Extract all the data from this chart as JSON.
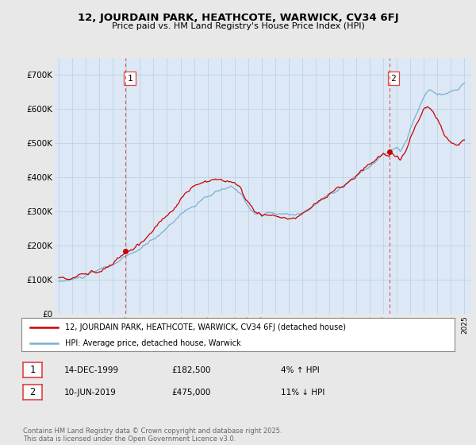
{
  "title": "12, JOURDAIN PARK, HEATHCOTE, WARWICK, CV34 6FJ",
  "subtitle": "Price paid vs. HM Land Registry's House Price Index (HPI)",
  "ylabel_ticks": [
    "£0",
    "£100K",
    "£200K",
    "£300K",
    "£400K",
    "£500K",
    "£600K",
    "£700K"
  ],
  "ytick_values": [
    0,
    100000,
    200000,
    300000,
    400000,
    500000,
    600000,
    700000
  ],
  "ylim": [
    0,
    750000
  ],
  "xlim_start": 1994.7,
  "xlim_end": 2025.5,
  "x_tick_years": [
    1995,
    1996,
    1997,
    1998,
    1999,
    2000,
    2001,
    2002,
    2003,
    2004,
    2005,
    2006,
    2007,
    2008,
    2009,
    2010,
    2011,
    2012,
    2013,
    2014,
    2015,
    2016,
    2017,
    2018,
    2019,
    2020,
    2021,
    2022,
    2023,
    2024,
    2025
  ],
  "property_color": "#cc0000",
  "hpi_color": "#7ab0d4",
  "vline_color": "#dd4444",
  "plot_bg_color": "#dce8f5",
  "grid_color": "#b8cfe0",
  "outer_bg_color": "#e8e8e8",
  "transaction1_x": 1999.95,
  "transaction1_y": 182500,
  "transaction2_x": 2019.44,
  "transaction2_y": 475000,
  "legend_entry1": "12, JOURDAIN PARK, HEATHCOTE, WARWICK, CV34 6FJ (detached house)",
  "legend_entry2": "HPI: Average price, detached house, Warwick",
  "annotation1_date": "14-DEC-1999",
  "annotation1_price": "£182,500",
  "annotation1_hpi": "4% ↑ HPI",
  "annotation2_date": "10-JUN-2019",
  "annotation2_price": "£475,000",
  "annotation2_hpi": "11% ↓ HPI",
  "footer": "Contains HM Land Registry data © Crown copyright and database right 2025.\nThis data is licensed under the Open Government Licence v3.0."
}
